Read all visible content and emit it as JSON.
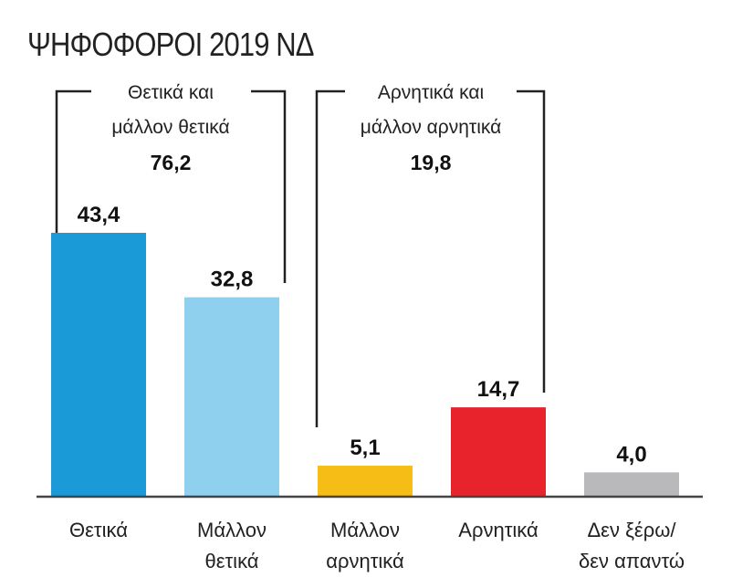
{
  "title": "ΨΗΦΟΦΟΡΟΙ 2019 ΝΔ",
  "groups": [
    {
      "label_line1": "Θετικά και",
      "label_line2": "μάλλον θετικά",
      "total": "76,2"
    },
    {
      "label_line1": "Αρνητικά και",
      "label_line2": "μάλλον αρνητικά",
      "total": "19,8"
    }
  ],
  "chart_data": {
    "type": "bar",
    "title": "ΨΗΦΟΦΟΡΟΙ 2019 ΝΔ",
    "categories": [
      [
        "Θετικά"
      ],
      [
        "Μάλλον",
        "θετικά"
      ],
      [
        "Μάλλον",
        "αρνητικά"
      ],
      [
        "Αρνητικά"
      ],
      [
        "Δεν ξέρω/",
        "δεν απαντώ"
      ]
    ],
    "values": [
      43.4,
      32.8,
      5.1,
      14.7,
      4.0
    ],
    "value_labels": [
      "43,4",
      "32,8",
      "5,1",
      "14,7",
      "4,0"
    ],
    "colors": [
      "#1a9ad6",
      "#8fd0ef",
      "#f5bd16",
      "#e8232c",
      "#b9b9bc"
    ],
    "ylim": [
      0,
      50
    ],
    "grid": false,
    "xlabel": "",
    "ylabel": ""
  }
}
